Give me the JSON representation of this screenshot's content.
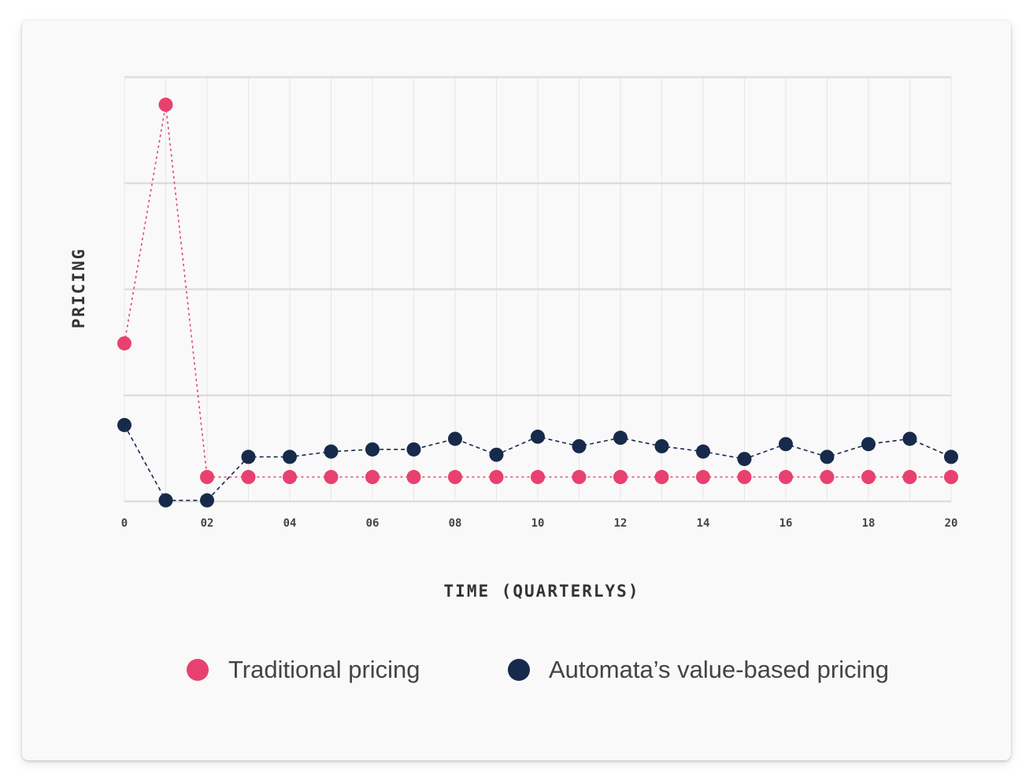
{
  "chart_data": {
    "type": "line",
    "xlabel": "TIME (QUARTERLYS)",
    "ylabel": "PRICING",
    "x": [
      0,
      1,
      2,
      3,
      4,
      5,
      6,
      7,
      8,
      9,
      10,
      11,
      12,
      13,
      14,
      15,
      16,
      17,
      18,
      19,
      20
    ],
    "x_tick_labels": [
      {
        "x": 0,
        "label": "0"
      },
      {
        "x": 2,
        "label": "02"
      },
      {
        "x": 4,
        "label": "04"
      },
      {
        "x": 6,
        "label": "06"
      },
      {
        "x": 8,
        "label": "08"
      },
      {
        "x": 10,
        "label": "10"
      },
      {
        "x": 12,
        "label": "12"
      },
      {
        "x": 14,
        "label": "14"
      },
      {
        "x": 16,
        "label": "16"
      },
      {
        "x": 18,
        "label": "18"
      },
      {
        "x": 20,
        "label": "20"
      }
    ],
    "xlim": [
      0,
      20
    ],
    "ylim": [
      0,
      4
    ],
    "y_gridlines": [
      0,
      1,
      2,
      3,
      4
    ],
    "grid": true,
    "legend_position": "bottom",
    "series": [
      {
        "name": "Traditional pricing",
        "color": "#e8416f",
        "line_style": "dotted",
        "values": [
          1.49,
          3.74,
          0.23,
          0.23,
          0.23,
          0.23,
          0.23,
          0.23,
          0.23,
          0.23,
          0.23,
          0.23,
          0.23,
          0.23,
          0.23,
          0.23,
          0.23,
          0.23,
          0.23,
          0.23,
          0.23
        ]
      },
      {
        "name": "Automata’s value-based pricing",
        "color": "#172a4b",
        "line_style": "dashed",
        "values": [
          0.72,
          0.01,
          0.01,
          0.42,
          0.42,
          0.47,
          0.49,
          0.49,
          0.59,
          0.44,
          0.61,
          0.52,
          0.6,
          0.52,
          0.47,
          0.4,
          0.54,
          0.42,
          0.54,
          0.59,
          0.42
        ]
      }
    ]
  }
}
